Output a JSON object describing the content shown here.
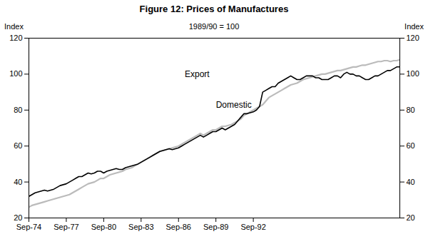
{
  "chart_data": {
    "type": "line",
    "title": "Figure 12: Prices of Manufactures",
    "subtitle": "1989/90 = 100",
    "ylabel": "Index",
    "y2label": "Index",
    "categories": [
      "Sep-74",
      null,
      null,
      null,
      null,
      null,
      null,
      null,
      null,
      null,
      null,
      null,
      "Sep-77",
      null,
      null,
      null,
      null,
      null,
      null,
      null,
      null,
      null,
      null,
      null,
      "Sep-80",
      null,
      null,
      null,
      null,
      null,
      null,
      null,
      null,
      null,
      null,
      null,
      "Sep-83",
      null,
      null,
      null,
      null,
      null,
      null,
      null,
      null,
      null,
      null,
      null,
      "Sep-86",
      null,
      null,
      null,
      null,
      null,
      null,
      null,
      null,
      null,
      null,
      null,
      "Sep-89",
      null,
      null,
      null,
      null,
      null,
      null,
      null,
      null,
      null,
      null,
      null,
      "Sep-92",
      null,
      null,
      null,
      null,
      null,
      null,
      null,
      null,
      null,
      null,
      null,
      null,
      null,
      null,
      null,
      null,
      null,
      null,
      null,
      null,
      null,
      null,
      null,
      null,
      null,
      null,
      null,
      null,
      null,
      null,
      null,
      null,
      null,
      null,
      null,
      null,
      null,
      null,
      null,
      null,
      null,
      null,
      null,
      null,
      null,
      null,
      null
    ],
    "series": [
      {
        "name": "Domestic",
        "color": "#bbbbbb",
        "values": [
          26,
          27,
          27.5,
          28,
          28.5,
          29,
          29.5,
          30,
          30.5,
          31,
          31.5,
          32,
          32.5,
          33,
          34,
          35,
          36,
          37,
          38,
          39,
          39.5,
          40,
          41,
          42,
          42,
          43,
          44,
          44.5,
          45,
          45.5,
          46,
          47,
          47.5,
          48,
          49,
          50,
          51,
          52,
          53,
          54,
          55,
          56,
          57,
          57.5,
          58,
          58.5,
          59,
          59.5,
          60,
          61,
          62,
          63,
          64,
          65,
          66,
          67,
          66,
          67,
          68,
          69,
          69,
          70,
          71,
          71,
          71.5,
          72,
          73,
          74,
          75,
          77,
          78,
          79,
          80,
          81,
          82,
          83,
          85,
          87,
          88,
          89,
          90,
          91,
          92,
          93,
          94,
          94.5,
          95,
          96,
          97,
          97.5,
          98,
          98.5,
          99,
          99.5,
          100,
          100,
          100.5,
          101,
          101.5,
          102,
          102,
          102.5,
          103,
          103.5,
          104,
          104,
          104.5,
          105,
          105,
          105.5,
          106,
          106.5,
          107,
          107,
          107.5,
          107.5,
          107,
          107.5,
          107.5,
          108
        ]
      },
      {
        "name": "Export",
        "color": "#000000",
        "values": [
          32,
          33,
          34,
          34.5,
          35,
          35.5,
          35,
          35.5,
          36,
          37,
          38,
          38.5,
          39,
          40,
          41,
          42,
          43,
          43,
          44,
          45,
          44.5,
          45,
          46,
          46,
          45,
          46,
          46.5,
          47,
          47.5,
          47,
          47,
          48,
          48.5,
          49,
          49.5,
          50,
          51,
          52,
          53,
          54,
          55,
          56,
          57,
          57.5,
          58,
          58.5,
          58,
          58.5,
          59,
          60,
          61,
          62,
          63,
          64,
          65,
          66,
          65,
          66,
          67,
          68,
          68,
          69,
          70,
          69,
          70,
          71,
          72,
          74,
          76,
          78,
          78,
          78.5,
          79,
          80,
          82,
          90,
          91,
          92,
          93,
          93,
          95,
          96,
          97,
          98,
          99,
          98,
          97,
          97,
          98,
          99,
          99,
          99,
          98,
          98,
          97,
          97,
          97,
          98,
          99,
          99,
          98,
          100,
          101,
          100,
          100,
          99,
          99,
          98,
          97,
          97,
          98,
          99,
          99,
          100,
          101,
          102,
          102,
          103,
          104,
          104
        ]
      }
    ],
    "ylim": [
      20,
      120
    ],
    "yticks": [
      20,
      40,
      60,
      80,
      100,
      120
    ],
    "y2lim": [
      20,
      120
    ],
    "y2ticks": [
      20,
      40,
      60,
      80,
      100,
      120
    ],
    "annotations": [
      {
        "text": "Export",
        "x": 50,
        "y": 97
      },
      {
        "text": "Domestic",
        "x": 60,
        "y": 80
      }
    ],
    "grid": false
  }
}
